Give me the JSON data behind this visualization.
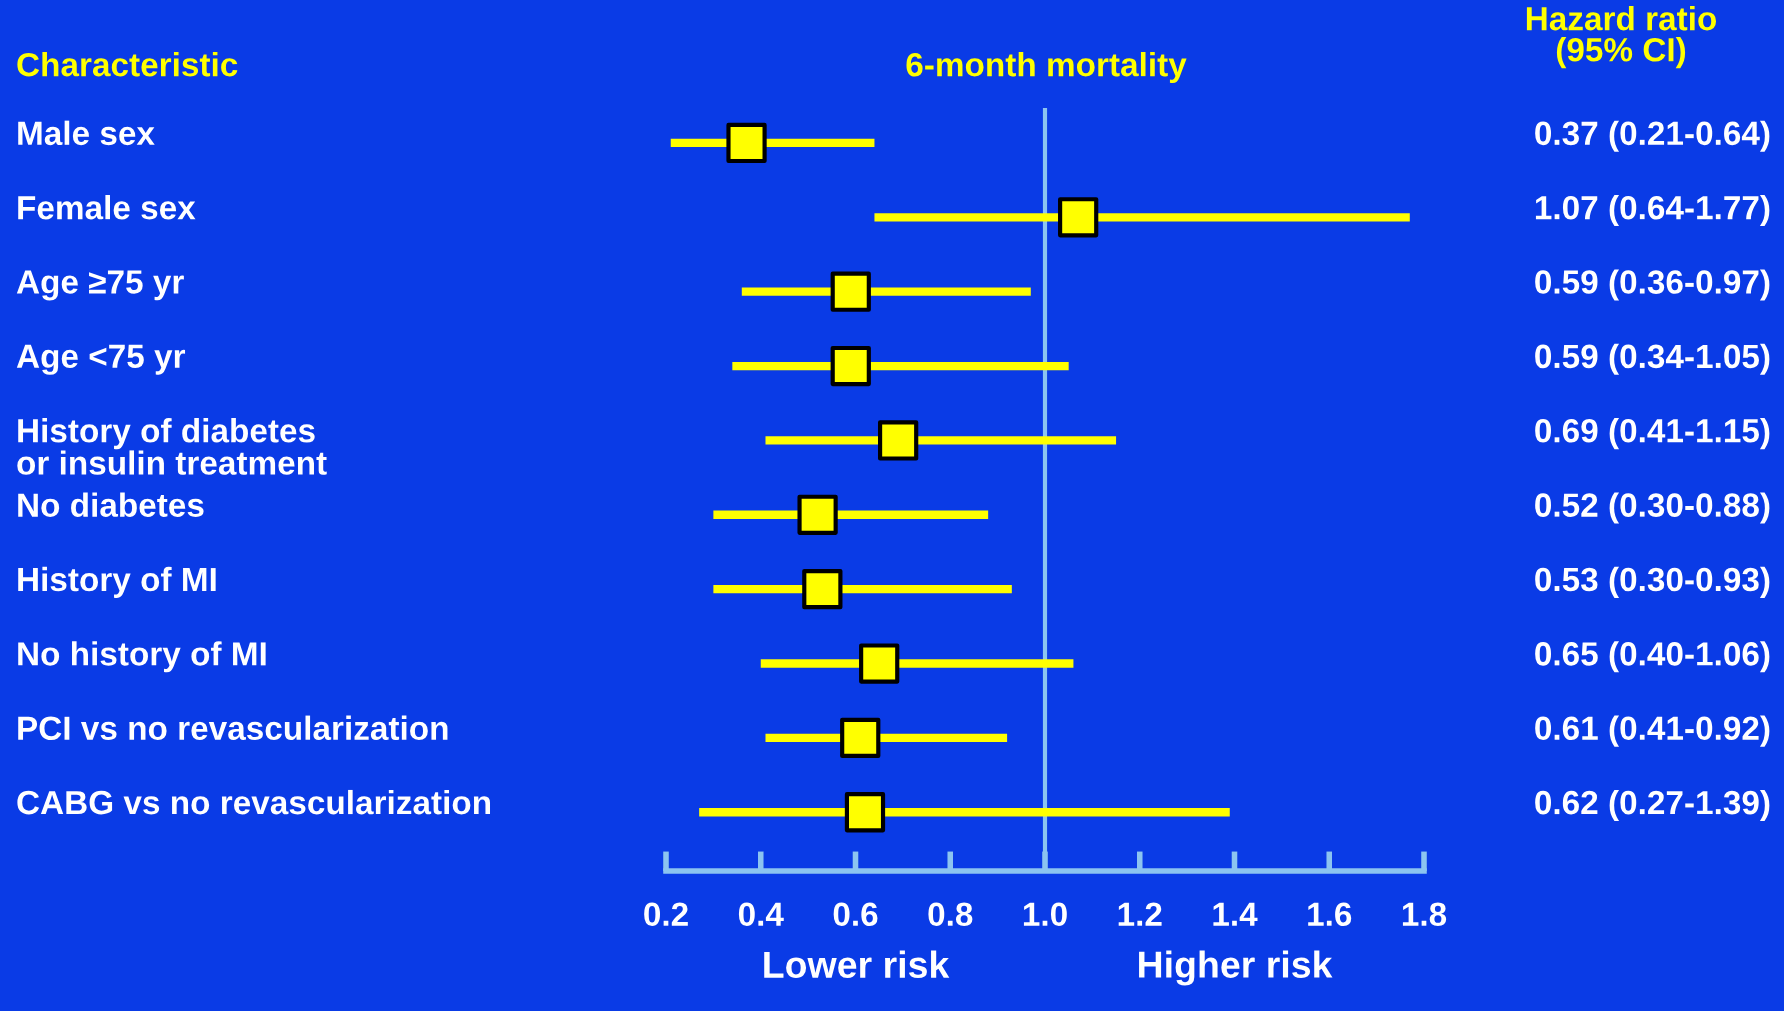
{
  "chart_data": {
    "type": "scatter",
    "orientation": "horizontal",
    "title": "6-month mortality",
    "categories": [
      "Male sex",
      "Female sex",
      "Age ≥75 yr",
      "Age <75 yr",
      "History of diabetes\nor insulin treatment",
      "No diabetes",
      "History of MI",
      "No history of MI",
      "PCI vs no revascularization",
      "CABG vs no revascularization"
    ],
    "series": [
      {
        "color": "#ffff00",
        "values": [
          0.37,
          1.07,
          0.59,
          0.59,
          0.69,
          0.52,
          0.53,
          0.65,
          0.61,
          0.62
        ],
        "errors": [
          [
            0.21,
            0.64
          ],
          [
            0.64,
            1.77
          ],
          [
            0.36,
            0.97
          ],
          [
            0.34,
            1.05
          ],
          [
            0.41,
            1.15
          ],
          [
            0.3,
            0.88
          ],
          [
            0.3,
            0.93
          ],
          [
            0.4,
            1.06
          ],
          [
            0.41,
            0.92
          ],
          [
            0.27,
            1.39
          ]
        ],
        "value_labels": [
          "0.37 (0.21-0.64)",
          "1.07 (0.64-1.77)",
          "0.59 (0.36-0.97)",
          "0.59 (0.34-1.05)",
          "0.69 (0.41-1.15)",
          "0.52 (0.30-0.88)",
          "0.53 (0.30-0.93)",
          "0.65 (0.40-1.06)",
          "0.61 (0.41-0.92)",
          "0.62 (0.27-1.39)"
        ]
      }
    ],
    "xlim": [
      0.2,
      1.8
    ],
    "xticks": [
      0.2,
      0.4,
      0.6,
      0.8,
      {
        "value": 1,
        "label": "1.0"
      },
      1.2,
      1.4,
      1.6,
      1.8
    ],
    "ref_lines": [
      {
        "axis": "x",
        "value": 1,
        "color": "#8cc4f0"
      }
    ],
    "marker": "square",
    "grid": false,
    "annotations": [
      "Characteristic",
      "Hazard ratio\n(95% CI)",
      "Lower risk",
      "Higher risk"
    ]
  }
}
